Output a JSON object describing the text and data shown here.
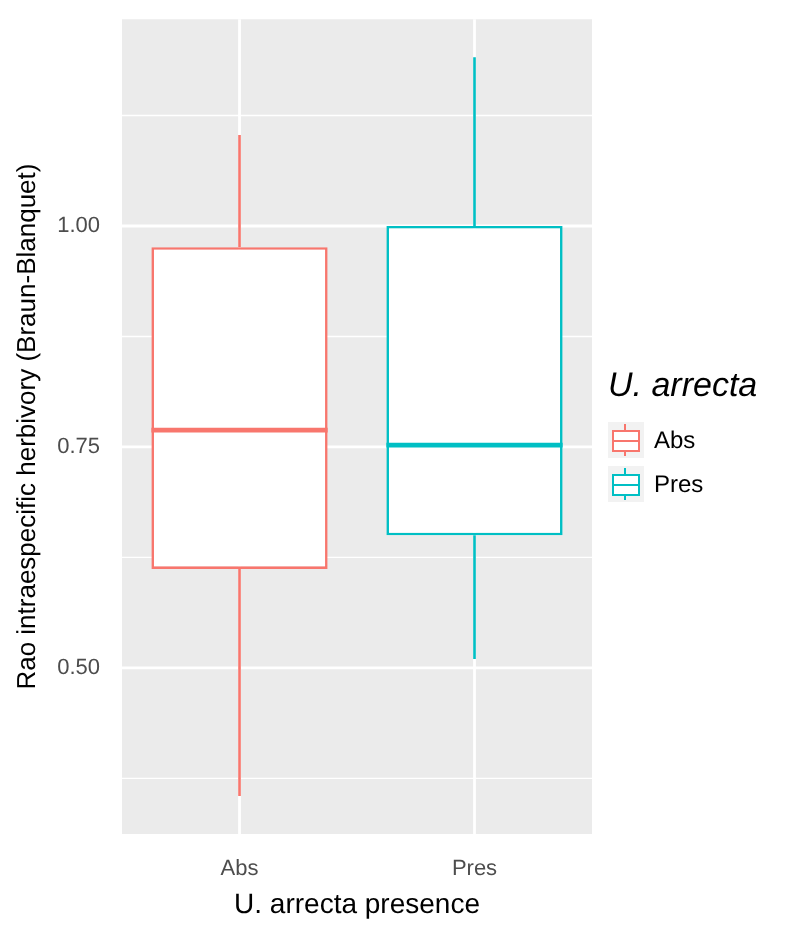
{
  "chart_data": {
    "type": "box",
    "xlabel": "U. arrecta presence",
    "ylabel": "Rao intraespecific herbivory (Braun-Blanquet)",
    "legend_title": "U. arrecta",
    "categories": [
      "Abs",
      "Pres"
    ],
    "series": [
      {
        "name": "Abs",
        "color": "#f8766d",
        "boxes": [
          {
            "low": 0.355,
            "q1": 0.612,
            "median": 0.769,
            "q3": 0.976,
            "high": 1.103
          },
          null
        ]
      },
      {
        "name": "Pres",
        "color": "#00bfc4",
        "boxes": [
          null,
          {
            "low": 0.51,
            "q1": 0.65,
            "median": 0.752,
            "q3": 1.0,
            "high": 1.191
          }
        ]
      }
    ],
    "ylim": [
      0.312,
      1.234
    ],
    "yticks": [
      {
        "value": 0.5,
        "label": "0.50"
      },
      {
        "value": 0.75,
        "label": "0.75"
      },
      {
        "value": 1.0,
        "label": "1.00"
      }
    ],
    "grid": true,
    "legend": "right"
  }
}
